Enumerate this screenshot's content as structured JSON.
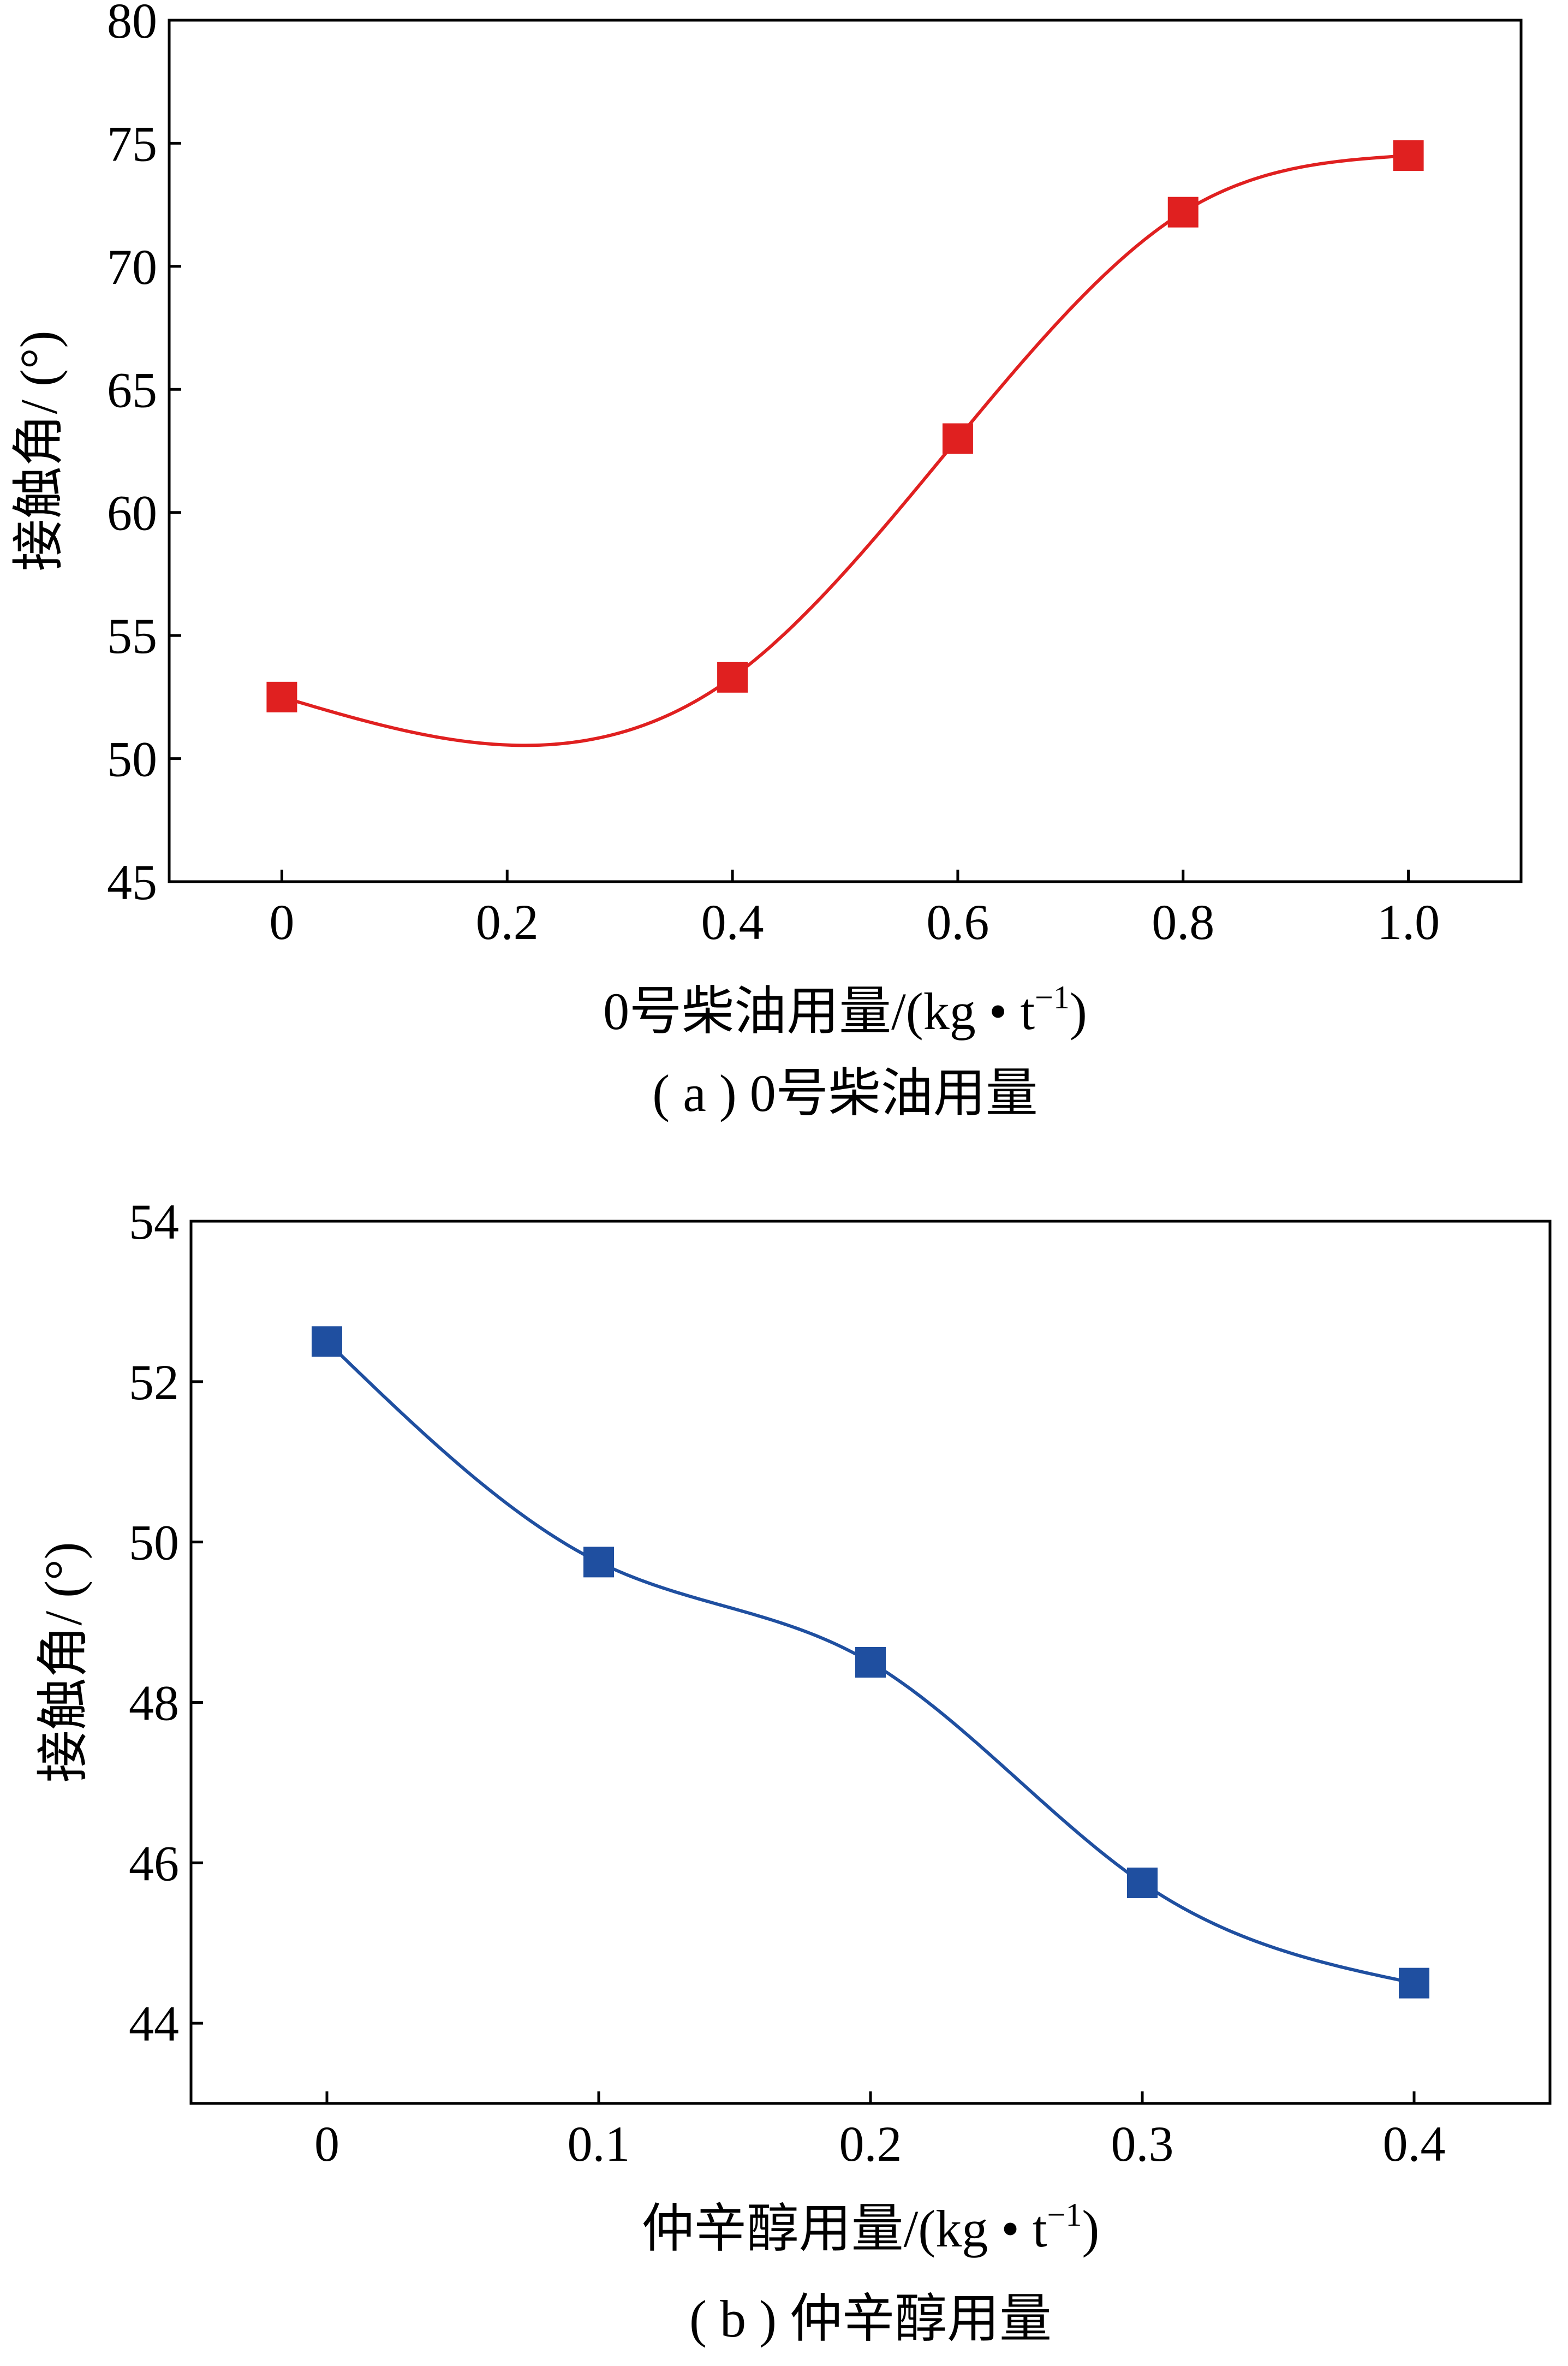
{
  "chart_data": [
    {
      "type": "line",
      "ylabel": "接触角/ (°)",
      "xlabel_prefix": "0号柴油用量/(kg • t",
      "xlabel_sup": "−1",
      "xlabel_suffix": ")",
      "caption": "( a ) 0号柴油用量",
      "color": "#e02020",
      "xlim": [
        -0.1,
        1.1
      ],
      "ylim": [
        45,
        80
      ],
      "xticks": [
        0,
        0.2,
        0.4,
        0.6,
        0.8,
        1.0
      ],
      "xtick_labels": [
        "0",
        "0.2",
        "0.4",
        "0.6",
        "0.8",
        "1.0"
      ],
      "yticks": [
        45,
        50,
        55,
        60,
        65,
        70,
        75,
        80
      ],
      "ytick_labels": [
        "45",
        "50",
        "55",
        "60",
        "65",
        "70",
        "75",
        "80"
      ],
      "series": [
        {
          "x": [
            0,
            0.4,
            0.6,
            0.8,
            1.0
          ],
          "values": [
            52.5,
            53.3,
            63.0,
            72.2,
            74.5
          ]
        }
      ]
    },
    {
      "type": "line",
      "ylabel": "接触角/ (°)",
      "xlabel_prefix": "仲辛醇用量/(kg • t",
      "xlabel_sup": "−1",
      "xlabel_suffix": ")",
      "caption": "( b ) 仲辛醇用量",
      "color": "#1f4fa0",
      "xlim": [
        -0.05,
        0.45
      ],
      "ylim": [
        43,
        54
      ],
      "xticks": [
        0,
        0.1,
        0.2,
        0.3,
        0.4
      ],
      "xtick_labels": [
        "0",
        "0.1",
        "0.2",
        "0.3",
        "0.4"
      ],
      "yticks": [
        44,
        46,
        48,
        50,
        52,
        54
      ],
      "ytick_labels": [
        "44",
        "46",
        "48",
        "50",
        "52",
        "54"
      ],
      "series": [
        {
          "x": [
            0,
            0.1,
            0.2,
            0.3,
            0.4
          ],
          "values": [
            52.5,
            49.75,
            48.5,
            45.75,
            44.5
          ]
        }
      ]
    }
  ]
}
